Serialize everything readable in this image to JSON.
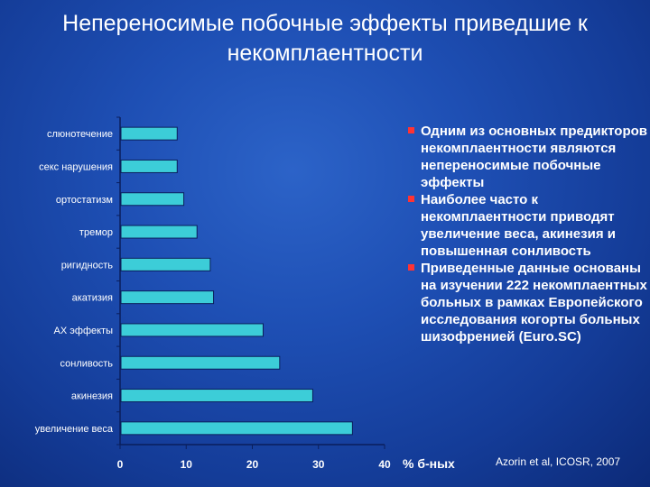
{
  "title": "Непереносимые побочные эффекты приведшие к некомплаентности",
  "chart_data": {
    "type": "bar",
    "orientation": "horizontal",
    "categories": [
      "слюнотечение",
      "секс нарушения",
      "ортостатизм",
      "тремор",
      "ригидность",
      "акатизия",
      "АХ эффекты",
      "сонливость",
      "акинезия",
      "увеличение веса"
    ],
    "values": [
      8.5,
      8.5,
      9.5,
      11.5,
      13.5,
      14,
      21.5,
      24,
      29,
      35
    ],
    "xlim": [
      0,
      40
    ],
    "xticks": [
      0,
      10,
      20,
      30,
      40
    ],
    "xlabel": "% б-ных",
    "bar_color": "#3ccdd8",
    "bar_edge_color": "#0a1e5c"
  },
  "bullets": [
    "Одним из основных предикторов некомплаентности являются непереносимые побочные эффекты",
    "Наиболее часто к некомплаентности приводят увеличение веса, акинезия и повышенная сонливость",
    "Приведенные данные основаны на изучении 222 некомплаентных больных в рамках Европейского исследования когорты больных шизофренией (Euro.SC)"
  ],
  "citation": "Azorin et al, ICOSR, 2007",
  "colors": {
    "bullet_marker": "#ff3333",
    "axis": "#0a1e5c"
  }
}
